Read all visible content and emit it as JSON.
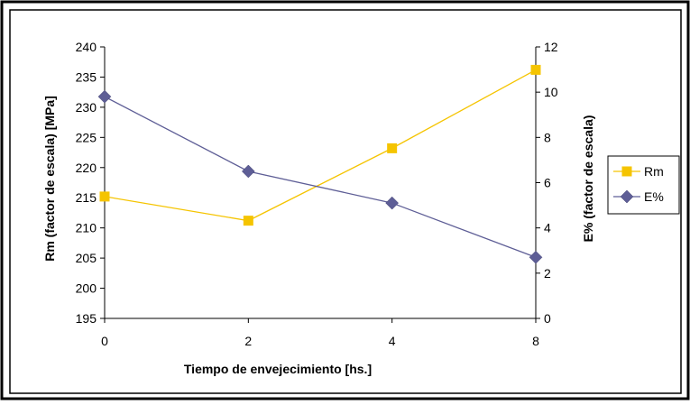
{
  "chart_data": {
    "type": "line",
    "categories": [
      "0",
      "2",
      "4",
      "8"
    ],
    "xlabel": "Tiempo de envejecimiento [hs.]",
    "ylabel_left": "Rm (factor de escala) [MPa]",
    "ylabel_right": "E% (factor de escala)",
    "ylim_left": [
      195,
      240
    ],
    "yticks_left": [
      "195",
      "200",
      "205",
      "210",
      "215",
      "220",
      "225",
      "230",
      "235",
      "240"
    ],
    "ylim_right": [
      0,
      12
    ],
    "yticks_right": [
      "0",
      "2",
      "4",
      "6",
      "8",
      "10",
      "12"
    ],
    "series": [
      {
        "name": "Rm",
        "axis": "left",
        "values": [
          215.2,
          211.2,
          223.2,
          236.2
        ],
        "color": "#F5C400",
        "marker": "square"
      },
      {
        "name": "E%",
        "axis": "right",
        "values": [
          9.8,
          6.5,
          5.1,
          2.7
        ],
        "color": "#5E5E96",
        "marker": "diamond"
      }
    ],
    "grid": false,
    "legend_position": "right"
  }
}
